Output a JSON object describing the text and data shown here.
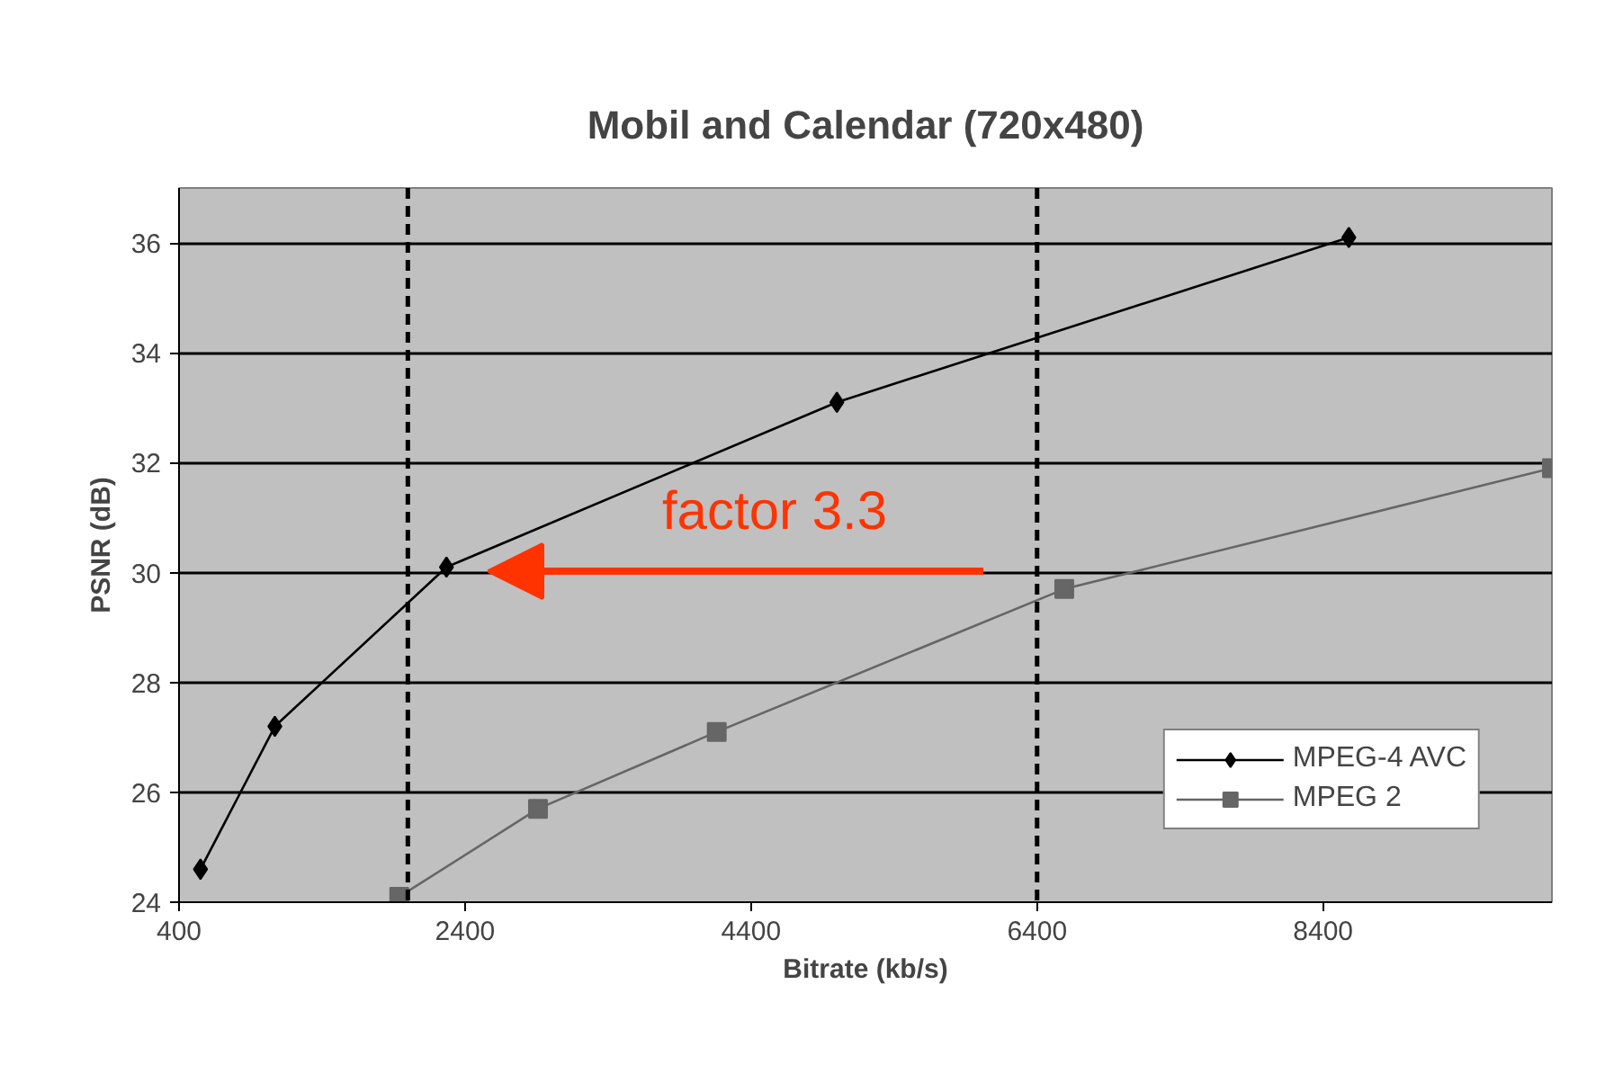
{
  "chart_data": {
    "type": "line",
    "title": "Mobil and Calendar (720x480)",
    "xlabel": "Bitrate (kb/s)",
    "ylabel": "PSNR (dB)",
    "xlim": [
      400,
      10000
    ],
    "xticks": [
      400,
      2400,
      4400,
      6400,
      8400
    ],
    "ylim": [
      24,
      37
    ],
    "yticks": [
      24,
      26,
      28,
      30,
      32,
      34,
      36
    ],
    "grid": "y",
    "legend": "bottom right",
    "series": [
      {
        "name": "MPEG-4 AVC",
        "color": "#000000",
        "marker": "diamond",
        "x": [
          550,
          1070,
          2270,
          5000,
          8580
        ],
        "values": [
          24.6,
          27.2,
          30.1,
          33.1,
          36.1
        ]
      },
      {
        "name": "MPEG 2",
        "color": "#666666",
        "marker": "square",
        "x": [
          1940,
          2910,
          4160,
          6590,
          10000
        ],
        "values": [
          24.1,
          25.7,
          27.1,
          29.7,
          31.9
        ]
      }
    ],
    "ref_lines": [
      {
        "axis": "x",
        "value": 2000,
        "line_style": "dashed",
        "color": "#000000"
      },
      {
        "axis": "x",
        "value": 6400,
        "line_style": "dashed",
        "color": "#000000"
      }
    ],
    "annotations": [
      "factor 3.3"
    ]
  }
}
